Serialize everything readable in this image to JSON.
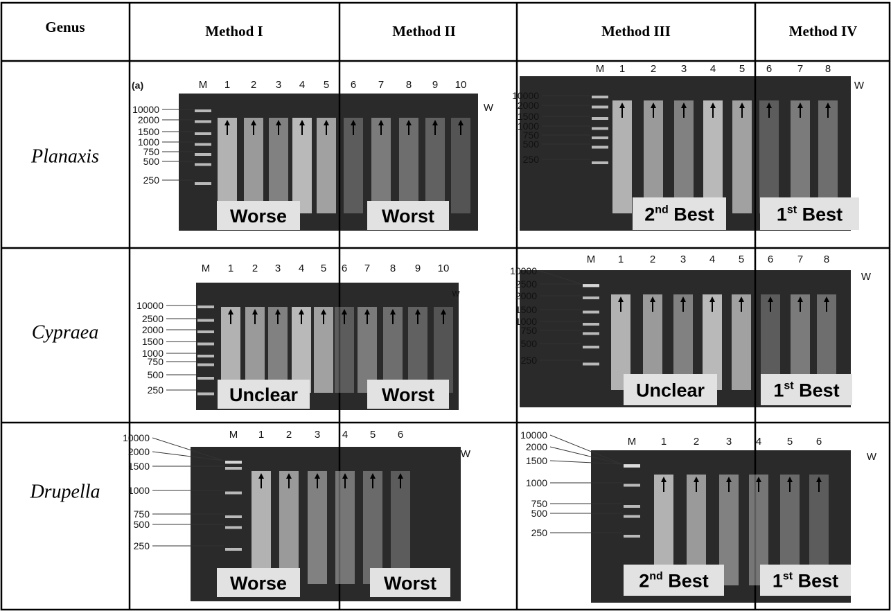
{
  "header": [
    "Genus",
    "Method I",
    "Method II",
    "Method III",
    "Method IV"
  ],
  "rows": [
    {
      "genus": "Planaxis",
      "left": {
        "panel_label": "(a)",
        "lanes": [
          "M",
          "1",
          "2",
          "3",
          "4",
          "5",
          "6",
          "7",
          "8",
          "9",
          "10"
        ],
        "markers": [
          "10000",
          "2000",
          "1500",
          "1000",
          "750",
          "500",
          "250"
        ],
        "well": "W",
        "ratings": [
          "Worse",
          "Worst"
        ]
      },
      "right": {
        "lanes": [
          "M",
          "1",
          "2",
          "3",
          "4",
          "5",
          "6",
          "7",
          "8"
        ],
        "markers": [
          "10000",
          "2000",
          "1500",
          "1000",
          "750",
          "500",
          "250"
        ],
        "well": "W",
        "ratings": [
          {
            "rank": "2",
            "suffix": "nd",
            "word": "Best"
          },
          {
            "rank": "1",
            "suffix": "st",
            "word": "Best"
          }
        ]
      }
    },
    {
      "genus": "Cypraea",
      "left": {
        "lanes": [
          "M",
          "1",
          "2",
          "3",
          "4",
          "5",
          "6",
          "7",
          "8",
          "9",
          "10"
        ],
        "markers": [
          "10000",
          "2500",
          "2000",
          "1500",
          "1000",
          "750",
          "500",
          "250"
        ],
        "well": "w",
        "ratings": [
          "Unclear",
          "Worst"
        ]
      },
      "right": {
        "lanes": [
          "M",
          "1",
          "2",
          "3",
          "4",
          "5",
          "6",
          "7",
          "8"
        ],
        "markers": [
          "10000",
          "2500",
          "2000",
          "1500",
          "1000",
          "750",
          "500",
          "250"
        ],
        "well": "W",
        "ratings": [
          "Unclear",
          {
            "rank": "1",
            "suffix": "st",
            "word": "Best"
          }
        ]
      }
    },
    {
      "genus": "Drupella",
      "left": {
        "lanes": [
          "M",
          "1",
          "2",
          "3",
          "4",
          "5",
          "6"
        ],
        "markers": [
          "10000",
          "2000",
          "1500",
          "1000",
          "750",
          "500",
          "250"
        ],
        "well": "W",
        "ratings": [
          "Worse",
          "Worst"
        ]
      },
      "right": {
        "lanes": [
          "M",
          "1",
          "2",
          "3",
          "4",
          "5",
          "6"
        ],
        "markers": [
          "10000",
          "2000",
          "1500",
          "1000",
          "750",
          "500",
          "250"
        ],
        "well": "W",
        "ratings": [
          {
            "rank": "2",
            "suffix": "nd",
            "word": "Best"
          },
          {
            "rank": "1",
            "suffix": "st",
            "word": "Best"
          }
        ]
      }
    }
  ]
}
